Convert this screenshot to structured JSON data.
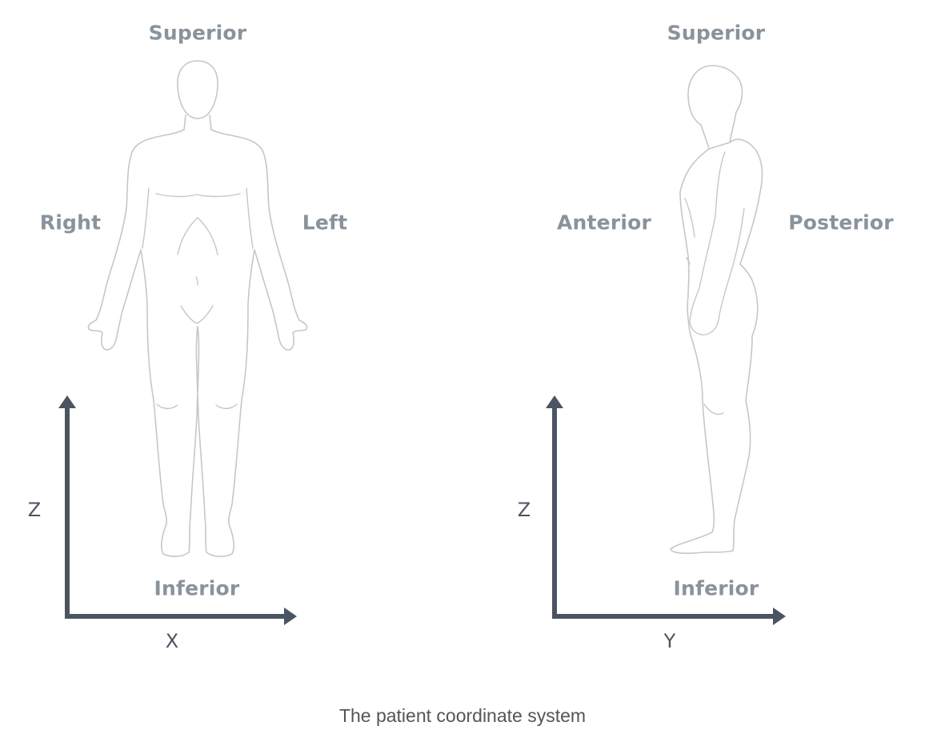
{
  "colors": {
    "label": "#8a939c",
    "axis": "#4b5561",
    "body_outline": "#c4c7cb",
    "caption": "#555555",
    "background": "#ffffff"
  },
  "front_view": {
    "labels": {
      "superior": "Superior",
      "inferior": "Inferior",
      "right": "Right",
      "left": "Left"
    },
    "axes": {
      "vertical": "Z",
      "horizontal": "X"
    }
  },
  "side_view": {
    "labels": {
      "superior": "Superior",
      "inferior": "Inferior",
      "anterior": "Anterior",
      "posterior": "Posterior"
    },
    "axes": {
      "vertical": "Z",
      "horizontal": "Y"
    }
  },
  "caption": "The patient coordinate system"
}
